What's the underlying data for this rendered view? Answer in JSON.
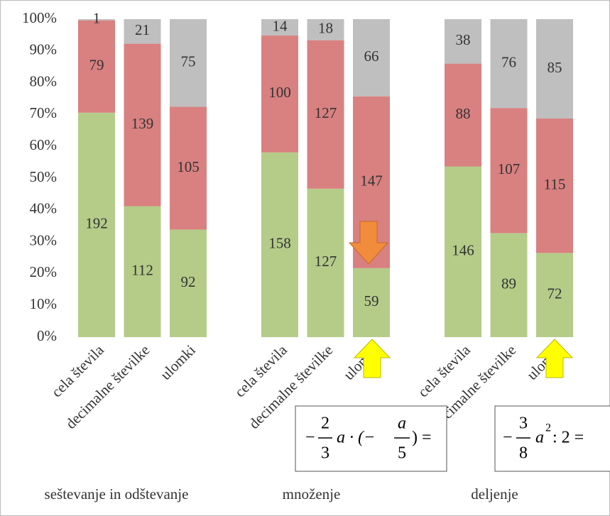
{
  "chart_data": {
    "type": "bar",
    "stacking": "percent",
    "categories": [
      "cela števila",
      "decimalne številke",
      "ulomki",
      "cela števila",
      "decimalne številke",
      "ulomki",
      "cela števila",
      "decimalne številke",
      "ulomki"
    ],
    "group_labels": [
      "seštevanje in odštevanje",
      "množenje",
      "deljenje"
    ],
    "series": [
      {
        "color": "#b4cc88",
        "values": [
          192,
          112,
          92,
          158,
          127,
          59,
          146,
          89,
          72
        ]
      },
      {
        "color": "#d98080",
        "values": [
          79,
          139,
          105,
          100,
          127,
          147,
          88,
          107,
          115
        ]
      },
      {
        "color": "#bfbfbf",
        "values": [
          1,
          21,
          75,
          14,
          18,
          66,
          38,
          76,
          85
        ]
      }
    ],
    "ylim": [
      0,
      100
    ],
    "yticks": [
      {
        "value": 0,
        "label": "0%"
      },
      {
        "value": 10,
        "label": "10%"
      },
      {
        "value": 20,
        "label": "20%"
      },
      {
        "value": 30,
        "label": "30%"
      },
      {
        "value": 40,
        "label": "40%"
      },
      {
        "value": 50,
        "label": "50%"
      },
      {
        "value": 60,
        "label": "60%"
      },
      {
        "value": 70,
        "label": "70%"
      },
      {
        "value": 80,
        "label": "80%"
      },
      {
        "value": 90,
        "label": "90%"
      },
      {
        "value": 100,
        "label": "100%"
      }
    ],
    "grid": false
  },
  "formulas": [
    {
      "sign": "−",
      "num": "2",
      "den": "3",
      "mid": "a · (−",
      "num2": "a",
      "den2": "5",
      "end": ") ="
    },
    {
      "sign": "−",
      "num": "3",
      "den": "8",
      "base": "a",
      "exp": "2",
      "end": " : 2 ="
    }
  ]
}
